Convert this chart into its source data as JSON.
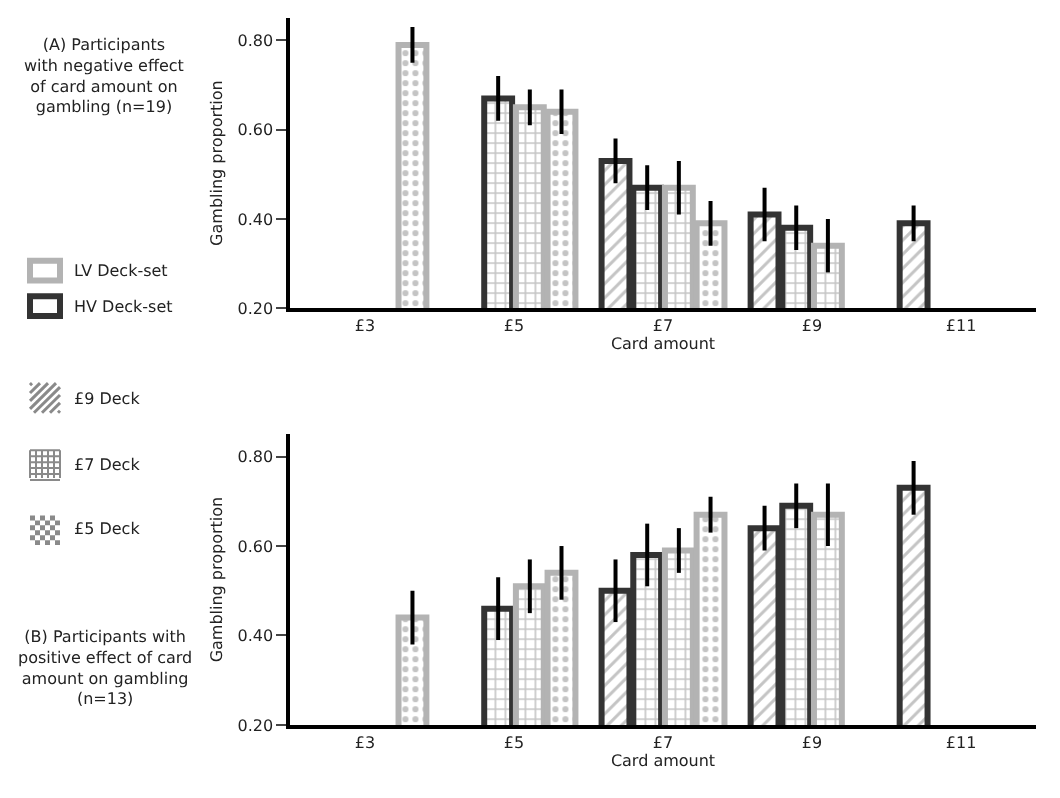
{
  "chart_data": [
    {
      "type": "bar",
      "title": "(A) Participants with negative effect of card amount on gambling (n=19)",
      "xlabel": "Card amount",
      "ylabel": "Gambling proportion",
      "categories": [
        "£3",
        "£5",
        "£7",
        "£9",
        "£11"
      ],
      "series": [
        {
          "color": "#333333",
          "values": [
            null,
            null,
            0.53,
            0.41,
            0.39
          ],
          "errors": [
            null,
            null,
            0.05,
            0.06,
            0.04
          ]
        },
        {
          "color": "#333333",
          "values": [
            null,
            0.67,
            0.47,
            0.38,
            null
          ],
          "errors": [
            null,
            0.05,
            0.05,
            0.05,
            null
          ]
        },
        {
          "color": "#b3b3b3",
          "values": [
            null,
            0.65,
            0.47,
            0.34,
            null
          ],
          "errors": [
            null,
            0.04,
            0.06,
            0.06,
            null
          ]
        },
        {
          "color": "#b3b3b3",
          "values": [
            0.79,
            0.64,
            0.39,
            null,
            null
          ],
          "errors": [
            0.04,
            0.05,
            0.05,
            null,
            null
          ]
        }
      ],
      "annotations": [
        "LV Deck-set",
        "HV Deck-set",
        "£9 Deck",
        "£7 Deck",
        "£5 Deck"
      ],
      "ylim": [
        0.2,
        0.85
      ],
      "yticks": [
        {
          "value": 0.2,
          "label": "0.20"
        },
        {
          "value": 0.4,
          "label": "0.40"
        },
        {
          "value": 0.6,
          "label": "0.60"
        },
        {
          "value": 0.8,
          "label": "0.80"
        }
      ]
    },
    {
      "type": "bar",
      "title": "(B) Participants with positive effect of card amount on gambling (n=13)",
      "xlabel": "Card amount",
      "ylabel": "Gambling proportion",
      "categories": [
        "£3",
        "£5",
        "£7",
        "£9",
        "£11"
      ],
      "series": [
        {
          "color": "#333333",
          "values": [
            null,
            null,
            0.5,
            0.64,
            0.73
          ],
          "errors": [
            null,
            null,
            0.07,
            0.05,
            0.06
          ]
        },
        {
          "color": "#333333",
          "values": [
            null,
            0.46,
            0.58,
            0.69,
            null
          ],
          "errors": [
            null,
            0.07,
            0.07,
            0.05,
            null
          ]
        },
        {
          "color": "#b3b3b3",
          "values": [
            null,
            0.51,
            0.59,
            0.67,
            null
          ],
          "errors": [
            null,
            0.06,
            0.05,
            0.07,
            null
          ]
        },
        {
          "color": "#b3b3b3",
          "values": [
            0.44,
            0.54,
            0.67,
            null,
            null
          ],
          "errors": [
            0.06,
            0.06,
            0.04,
            null,
            null
          ]
        }
      ],
      "ylim": [
        0.2,
        0.85
      ],
      "yticks": [
        {
          "value": 0.2,
          "label": "0.20"
        },
        {
          "value": 0.4,
          "label": "0.40"
        },
        {
          "value": 0.6,
          "label": "0.60"
        },
        {
          "value": 0.8,
          "label": "0.80"
        }
      ]
    }
  ]
}
